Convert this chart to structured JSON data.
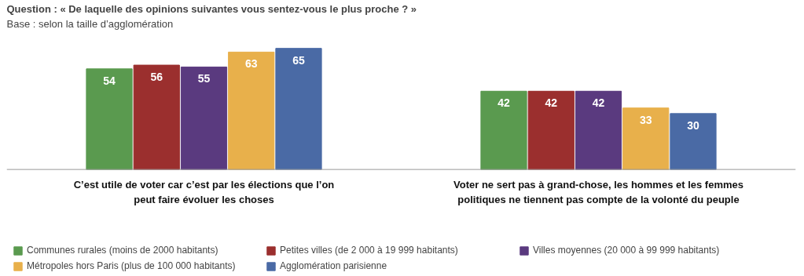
{
  "chart_data": {
    "type": "bar",
    "title": "Question : « De laquelle des opinions suivantes vous sentez-vous le plus proche ? »",
    "subtitle": "Base : selon la taille d’agglomération",
    "categories": [
      "C’est utile de voter car c’est par les élections que l’on peut faire évoluer les choses",
      "Voter ne sert pas à grand-chose, les hommes et les femmes politiques ne tiennent pas compte de la volonté du peuple"
    ],
    "series": [
      {
        "name": "Communes rurales (moins de 2000 habitants)",
        "color": "#5a9a4f",
        "values": [
          54,
          42
        ]
      },
      {
        "name": "Petites villes (de 2 000 à 19 999 habitants)",
        "color": "#9b2f2e",
        "values": [
          56,
          42
        ]
      },
      {
        "name": "Villes moyennes (20 000 à 99 999 habitants)",
        "color": "#5a3a7f",
        "values": [
          55,
          42
        ]
      },
      {
        "name": "Métropoles hors Paris (plus de 100 000 habitants)",
        "color": "#e8b04b",
        "values": [
          63,
          33
        ]
      },
      {
        "name": "Agglomération parisienne",
        "color": "#4a6aa5",
        "values": [
          65,
          30
        ]
      }
    ],
    "data_labels": true,
    "legend": "bottom",
    "grid": false
  }
}
